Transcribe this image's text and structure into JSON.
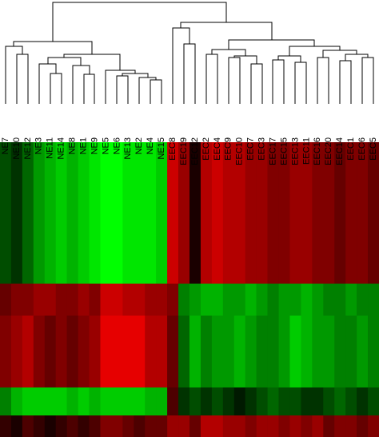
{
  "chart_data": {
    "type": "heatmap",
    "categories": [
      "NE7",
      "NE10",
      "NE12",
      "NE3",
      "NE11",
      "NE14",
      "NE8",
      "NE1",
      "NE9",
      "NE5",
      "NE6",
      "NE13",
      "NE2",
      "NE4",
      "NE15",
      "EEC8",
      "EEC19",
      "EEC12",
      "EEC2",
      "EEC4",
      "EEC9",
      "EEC10",
      "EEC7",
      "EEC3",
      "EEC17",
      "EEC15",
      "EEC13",
      "EEC11",
      "EEC16",
      "EEC20",
      "EEC14",
      "EEC1",
      "EEC6",
      "EEC5"
    ],
    "values": [
      [
        -0.3,
        -0.2,
        -0.4,
        -0.6,
        -0.7,
        -0.8,
        -0.7,
        -0.8,
        -0.9,
        -1,
        -1,
        -0.9,
        -0.9,
        -0.9,
        -0.8,
        0.8,
        0.6,
        0.1,
        0.7,
        0.8,
        0.7,
        0.7,
        0.6,
        0.6,
        0.5,
        0.5,
        0.6,
        0.6,
        0.5,
        0.5,
        0.4,
        0.5,
        0.5,
        0.4
      ],
      [
        0.4,
        0.5,
        0.5,
        0.6,
        0.6,
        0.5,
        0.5,
        0.6,
        0.5,
        0.8,
        0.8,
        0.7,
        0.7,
        0.6,
        0.6,
        0.5,
        -0.5,
        -0.6,
        -0.7,
        -0.7,
        -0.6,
        -0.6,
        -0.7,
        -0.6,
        -0.5,
        -0.6,
        -0.6,
        -0.7,
        -0.6,
        -0.5,
        -0.5,
        -0.6,
        -0.5,
        -0.5
      ],
      [
        0.5,
        0.6,
        0.7,
        0.5,
        0.4,
        0.5,
        0.4,
        0.5,
        0.6,
        0.9,
        0.9,
        0.9,
        0.9,
        0.7,
        0.7,
        0.4,
        -0.4,
        -0.7,
        -0.5,
        -0.6,
        -0.6,
        -0.7,
        -0.6,
        -0.5,
        -0.5,
        -0.6,
        -0.8,
        -0.7,
        -0.6,
        -0.6,
        -0.5,
        -0.5,
        -0.6,
        -0.5
      ],
      [
        -0.5,
        -0.7,
        -0.8,
        -0.8,
        -0.8,
        -0.8,
        -0.7,
        -0.8,
        -0.7,
        -0.8,
        -0.8,
        -0.8,
        -0.8,
        -0.7,
        -0.7,
        0.3,
        -0.2,
        -0.3,
        -0.2,
        -0.3,
        -0.2,
        -0.1,
        -0.2,
        -0.3,
        -0.4,
        -0.3,
        -0.3,
        -0.2,
        -0.2,
        -0.3,
        -0.4,
        -0.3,
        -0.2,
        -0.3
      ],
      [
        0.2,
        0.1,
        0.3,
        0.2,
        0.1,
        0.2,
        0.3,
        0.2,
        0.3,
        0.5,
        0.5,
        0.4,
        0.3,
        0.4,
        0.4,
        0.6,
        0.6,
        0.4,
        0.7,
        0.7,
        0.6,
        0.6,
        0.5,
        0.6,
        0.6,
        0.5,
        0.6,
        0.5,
        0.6,
        0.4,
        0.5,
        0.5,
        0.4,
        0.5
      ]
    ],
    "colors": [
      "#00ff00",
      "#000000",
      "#ff0000"
    ]
  }
}
